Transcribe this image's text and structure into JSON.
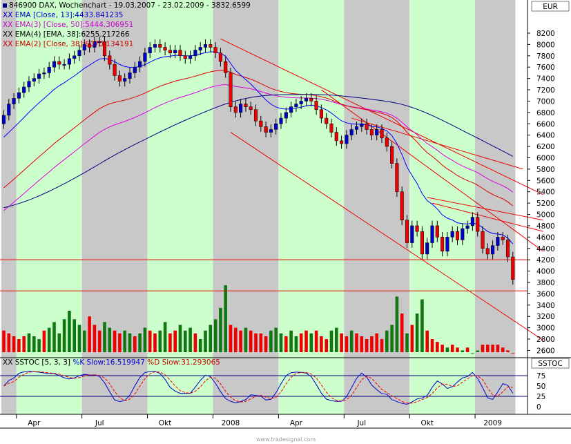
{
  "header": {
    "title": "846900  DAX, Wochenchart - 19.03.2007 - 23.02.2009 - 3832.6599",
    "currency": "EUR",
    "legend": [
      {
        "text": "XX EMA [Close, 13]:4433.841235",
        "color": "#0000cc"
      },
      {
        "text": "XX EMA(3) [Close, 50]:5444.306951",
        "color": "#cc00cc"
      },
      {
        "text": "XX EMA(4) [EMA, 38]:6255.217266",
        "color": "#000000"
      },
      {
        "text": "XX EMA(2) [Close, 38]:6070.134191",
        "color": "#cc0000"
      }
    ]
  },
  "oscillator": {
    "legend_prefix": "XX SSTOC [5, 3, 3]",
    "k_label": "%K Slow:16.519947",
    "d_label": "%D Slow:31.293065",
    "label": "SSTOC",
    "ticks": [
      "75",
      "50",
      "25",
      "0"
    ]
  },
  "footer": {
    "watermark": "www.tradesignal.com"
  },
  "colors": {
    "band_green": "#ccffcc",
    "band_gray": "#c8c8c8",
    "up": "#0000cc",
    "down": "#ee0000",
    "ema13": "#0000ff",
    "ema50": "#dd00dd",
    "ema38": "#dd0000",
    "ema_ema": "#000080",
    "vol_up": "#117711",
    "vol_down": "#ee0000"
  },
  "chart_data": {
    "type": "candlestick",
    "ylim": [
      2400,
      8600
    ],
    "y_ticks": [
      8200,
      8000,
      7800,
      7600,
      7400,
      7200,
      7000,
      6800,
      6600,
      6400,
      6200,
      6000,
      5800,
      5600,
      5400,
      5200,
      5000,
      4800,
      4600,
      4400,
      4200,
      4000,
      3800,
      3600,
      3400,
      3200,
      3000,
      2800,
      2600
    ],
    "x_ticks": [
      {
        "label": "Apr",
        "week": 6
      },
      {
        "label": "Jul",
        "week": 19
      },
      {
        "label": "Okt",
        "week": 32
      },
      {
        "label": "2008",
        "week": 45
      },
      {
        "label": "Apr",
        "week": 58
      },
      {
        "label": "Jul",
        "week": 71
      },
      {
        "label": "Okt",
        "week": 84
      },
      {
        "label": "2009",
        "week": 97
      }
    ],
    "month_bands": [
      {
        "from": -0.5,
        "to": 2.5,
        "color": "gray"
      },
      {
        "from": 2.5,
        "to": 15.5,
        "color": "green"
      },
      {
        "from": 15.5,
        "to": 28.5,
        "color": "gray"
      },
      {
        "from": 28.5,
        "to": 41.5,
        "color": "green"
      },
      {
        "from": 41.5,
        "to": 54.5,
        "color": "gray"
      },
      {
        "from": 54.5,
        "to": 67.5,
        "color": "green"
      },
      {
        "from": 67.5,
        "to": 80.5,
        "color": "gray"
      },
      {
        "from": 80.5,
        "to": 93.5,
        "color": "green"
      },
      {
        "from": 93.5,
        "to": 101.5,
        "color": "gray"
      }
    ],
    "close": [
      6750,
      6950,
      7050,
      7150,
      7250,
      7350,
      7400,
      7480,
      7500,
      7600,
      7700,
      7650,
      7650,
      7750,
      7800,
      7900,
      8000,
      7950,
      8050,
      8050,
      7800,
      7650,
      7450,
      7350,
      7400,
      7500,
      7600,
      7700,
      7850,
      7950,
      8000,
      7950,
      7900,
      7850,
      7900,
      7800,
      7750,
      7800,
      7900,
      7950,
      8000,
      7950,
      7850,
      7700,
      7500,
      6900,
      6800,
      6950,
      6900,
      6850,
      6650,
      6550,
      6450,
      6500,
      6600,
      6700,
      6800,
      6900,
      6950,
      7000,
      7050,
      7000,
      6850,
      6700,
      6600,
      6450,
      6300,
      6250,
      6400,
      6500,
      6550,
      6600,
      6500,
      6400,
      6500,
      6350,
      6200,
      5900,
      5400,
      4900,
      4500,
      4800,
      4700,
      4300,
      4500,
      4800,
      4600,
      4350,
      4600,
      4700,
      4550,
      4750,
      4800,
      4950,
      4700,
      4400,
      4300,
      4450,
      4600,
      4550,
      4250,
      3850
    ],
    "volume": [
      {
        "v": 2950,
        "up": false
      },
      {
        "v": 2900,
        "up": false
      },
      {
        "v": 2850,
        "up": false
      },
      {
        "v": 2800,
        "up": false
      },
      {
        "v": 2850,
        "up": false
      },
      {
        "v": 2900,
        "up": true
      },
      {
        "v": 2850,
        "up": true
      },
      {
        "v": 2800,
        "up": true
      },
      {
        "v": 2950,
        "up": false
      },
      {
        "v": 3000,
        "up": true
      },
      {
        "v": 3100,
        "up": true
      },
      {
        "v": 2900,
        "up": true
      },
      {
        "v": 3150,
        "up": true
      },
      {
        "v": 3300,
        "up": true
      },
      {
        "v": 3150,
        "up": true
      },
      {
        "v": 3050,
        "up": true
      },
      {
        "v": 2950,
        "up": true
      },
      {
        "v": 3200,
        "up": false
      },
      {
        "v": 3050,
        "up": false
      },
      {
        "v": 2950,
        "up": false
      },
      {
        "v": 3100,
        "up": true
      },
      {
        "v": 3000,
        "up": true
      },
      {
        "v": 2950,
        "up": false
      },
      {
        "v": 2900,
        "up": false
      },
      {
        "v": 2950,
        "up": true
      },
      {
        "v": 2900,
        "up": true
      },
      {
        "v": 2850,
        "up": false
      },
      {
        "v": 2900,
        "up": true
      },
      {
        "v": 3000,
        "up": true
      },
      {
        "v": 2950,
        "up": false
      },
      {
        "v": 2900,
        "up": false
      },
      {
        "v": 2950,
        "up": true
      },
      {
        "v": 3100,
        "up": true
      },
      {
        "v": 2900,
        "up": false
      },
      {
        "v": 2950,
        "up": false
      },
      {
        "v": 3050,
        "up": true
      },
      {
        "v": 2950,
        "up": true
      },
      {
        "v": 3000,
        "up": true
      },
      {
        "v": 2900,
        "up": false
      },
      {
        "v": 2800,
        "up": true
      },
      {
        "v": 2950,
        "up": true
      },
      {
        "v": 3050,
        "up": true
      },
      {
        "v": 3150,
        "up": true
      },
      {
        "v": 3350,
        "up": true
      },
      {
        "v": 3750,
        "up": true
      },
      {
        "v": 3050,
        "up": false
      },
      {
        "v": 3000,
        "up": false
      },
      {
        "v": 2950,
        "up": false
      },
      {
        "v": 3000,
        "up": true
      },
      {
        "v": 2950,
        "up": false
      },
      {
        "v": 2900,
        "up": false
      },
      {
        "v": 2900,
        "up": false
      },
      {
        "v": 2850,
        "up": false
      },
      {
        "v": 2950,
        "up": true
      },
      {
        "v": 3000,
        "up": true
      },
      {
        "v": 2900,
        "up": true
      },
      {
        "v": 2850,
        "up": false
      },
      {
        "v": 2950,
        "up": true
      },
      {
        "v": 2850,
        "up": true
      },
      {
        "v": 2900,
        "up": false
      },
      {
        "v": 2950,
        "up": false
      },
      {
        "v": 2900,
        "up": true
      },
      {
        "v": 2950,
        "up": false
      },
      {
        "v": 2850,
        "up": false
      },
      {
        "v": 2800,
        "up": false
      },
      {
        "v": 2950,
        "up": true
      },
      {
        "v": 3000,
        "up": true
      },
      {
        "v": 2900,
        "up": false
      },
      {
        "v": 2850,
        "up": false
      },
      {
        "v": 2950,
        "up": true
      },
      {
        "v": 2900,
        "up": false
      },
      {
        "v": 2850,
        "up": false
      },
      {
        "v": 2800,
        "up": false
      },
      {
        "v": 2850,
        "up": false
      },
      {
        "v": 2900,
        "up": false
      },
      {
        "v": 2800,
        "up": false
      },
      {
        "v": 2950,
        "up": true
      },
      {
        "v": 3050,
        "up": true
      },
      {
        "v": 3550,
        "up": true
      },
      {
        "v": 3250,
        "up": false
      },
      {
        "v": 2900,
        "up": true
      },
      {
        "v": 3050,
        "up": false
      },
      {
        "v": 3250,
        "up": true
      },
      {
        "v": 3500,
        "up": true
      },
      {
        "v": 2950,
        "up": false
      },
      {
        "v": 2800,
        "up": false
      },
      {
        "v": 2750,
        "up": false
      },
      {
        "v": 2700,
        "up": false
      },
      {
        "v": 2650,
        "up": true
      },
      {
        "v": 2700,
        "up": false
      },
      {
        "v": 2650,
        "up": false
      },
      {
        "v": 2600,
        "up": true
      },
      {
        "v": 2650,
        "up": false
      },
      {
        "v": 2550,
        "up": true
      },
      {
        "v": 2600,
        "up": true
      },
      {
        "v": 2700,
        "up": false
      },
      {
        "v": 2700,
        "up": false
      },
      {
        "v": 2700,
        "up": false
      },
      {
        "v": 2700,
        "up": false
      },
      {
        "v": 2650,
        "up": false
      },
      {
        "v": 2600,
        "up": false
      },
      {
        "v": 2550,
        "up": false
      }
    ],
    "trendlines": [
      {
        "from": [
          43,
          8100
        ],
        "to": [
          107,
          5350
        ]
      },
      {
        "from": [
          45,
          6450
        ],
        "to": [
          107,
          2780
        ]
      },
      {
        "from": [
          63,
          7200
        ],
        "to": [
          107,
          4350
        ]
      },
      {
        "from": [
          84,
          5300
        ],
        "to": [
          107,
          4900
        ]
      },
      {
        "from": [
          85,
          5200
        ],
        "to": [
          107,
          4700
        ]
      },
      {
        "from": [
          69,
          6700
        ],
        "to": [
          103,
          5800
        ]
      }
    ],
    "hlines": [
      4200,
      3650
    ]
  }
}
